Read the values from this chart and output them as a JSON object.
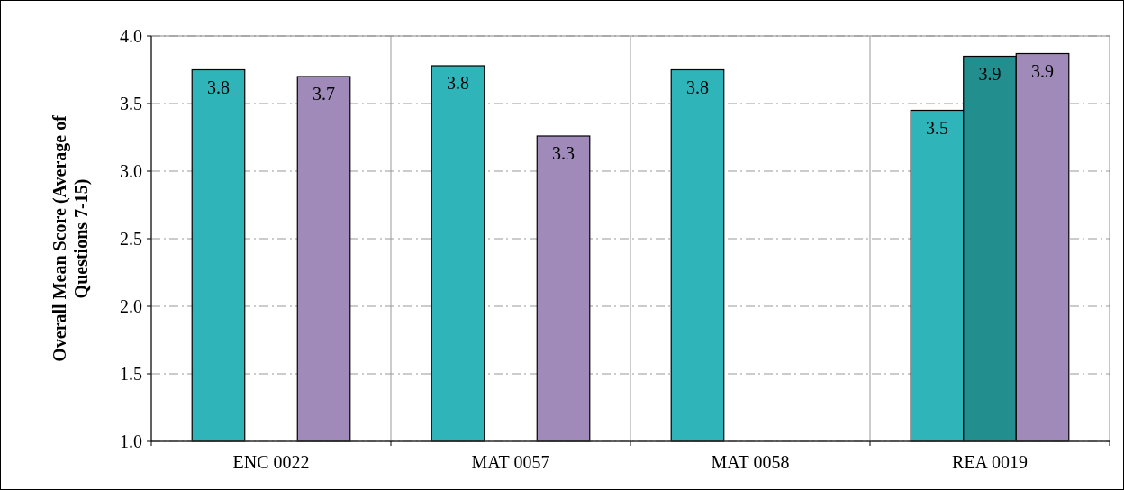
{
  "chart_data": {
    "type": "bar",
    "ylabel": "Overall Mean Score (Average of Questions 7-15)",
    "categories": [
      "ENC 0022",
      "MAT 0057",
      "MAT 0058",
      "REA 0019"
    ],
    "series": [
      {
        "color": "#2fb5b9",
        "values": [
          3.75,
          3.78,
          3.75,
          3.45
        ],
        "value_labels": [
          "3.8",
          "3.8",
          "3.8",
          "3.5"
        ]
      },
      {
        "color": "#238e8e",
        "values": [
          null,
          null,
          null,
          3.85
        ],
        "value_labels": [
          null,
          null,
          null,
          "3.9"
        ]
      },
      {
        "color": "#a08ab9",
        "values": [
          3.7,
          3.26,
          null,
          3.87
        ],
        "value_labels": [
          "3.7",
          "3.3",
          null,
          "3.9"
        ]
      }
    ],
    "ylim": [
      1.0,
      4.0
    ],
    "yticks": [
      {
        "value": 1,
        "label": "1.0"
      },
      {
        "value": 1.5,
        "label": "1.5"
      },
      {
        "value": 2,
        "label": "2.0"
      },
      {
        "value": 2.5,
        "label": "2.5"
      },
      {
        "value": 3,
        "label": "3.0"
      },
      {
        "value": 3.5,
        "label": "3.5"
      },
      {
        "value": 4,
        "label": "4.0"
      }
    ],
    "grid": true
  }
}
